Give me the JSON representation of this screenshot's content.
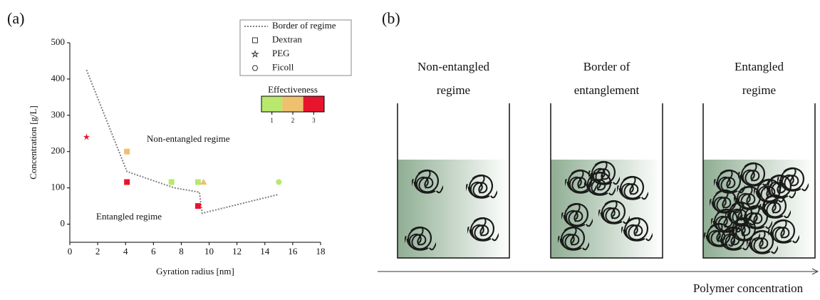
{
  "panels": [
    "(a)",
    "(b)"
  ],
  "chart_data": {
    "type": "scatter",
    "x_label": "Gyration radius [nm]",
    "y_label": "Concentration [g/L]",
    "xlim": [
      0,
      18
    ],
    "xticks": [
      0,
      2,
      4,
      6,
      8,
      10,
      12,
      14,
      16,
      18
    ],
    "ylim": [
      -50,
      500
    ],
    "yticks": [
      0,
      100,
      200,
      300,
      400,
      500
    ],
    "annotations": [
      "Non-entangled regime",
      "Entangled regime"
    ],
    "colorbar": {
      "title": "Effectiveness",
      "ticks": [
        1,
        2,
        3
      ],
      "colors": [
        "#b8e86c",
        "#efc06e",
        "#e8142c"
      ]
    },
    "series": [
      {
        "name": "Border of regime",
        "kind": "line",
        "color": "#808080",
        "x": [
          1.2,
          4.1,
          7.5,
          9.3,
          9.5,
          15
        ],
        "values": [
          425,
          145,
          100,
          88,
          30,
          82
        ]
      },
      {
        "name": "Dextran",
        "marker": "square",
        "x": [
          4.1,
          4.1,
          7.3,
          9.2,
          9.2
        ],
        "values": [
          200,
          116,
          116,
          116,
          50
        ],
        "effectiveness": [
          2,
          3,
          1,
          1,
          3
        ]
      },
      {
        "name": "PEG",
        "marker": "star",
        "x": [
          1.2
        ],
        "values": [
          240
        ],
        "effectiveness": [
          3
        ]
      },
      {
        "name": "Ficoll",
        "marker": "hexagon",
        "x": [
          15
        ],
        "values": [
          116
        ],
        "effectiveness": [
          1
        ]
      },
      {
        "marker": "triangle",
        "x": [
          9.6
        ],
        "values": [
          116
        ],
        "effectiveness": [
          2
        ]
      }
    ]
  },
  "diagram": {
    "beakers": [
      {
        "label": [
          "Non-entangled",
          "regime"
        ]
      },
      {
        "label": [
          "Border of",
          "entanglement"
        ]
      },
      {
        "label": [
          "Entangled",
          "regime"
        ]
      }
    ],
    "axis_label": "Polymer concentration"
  }
}
